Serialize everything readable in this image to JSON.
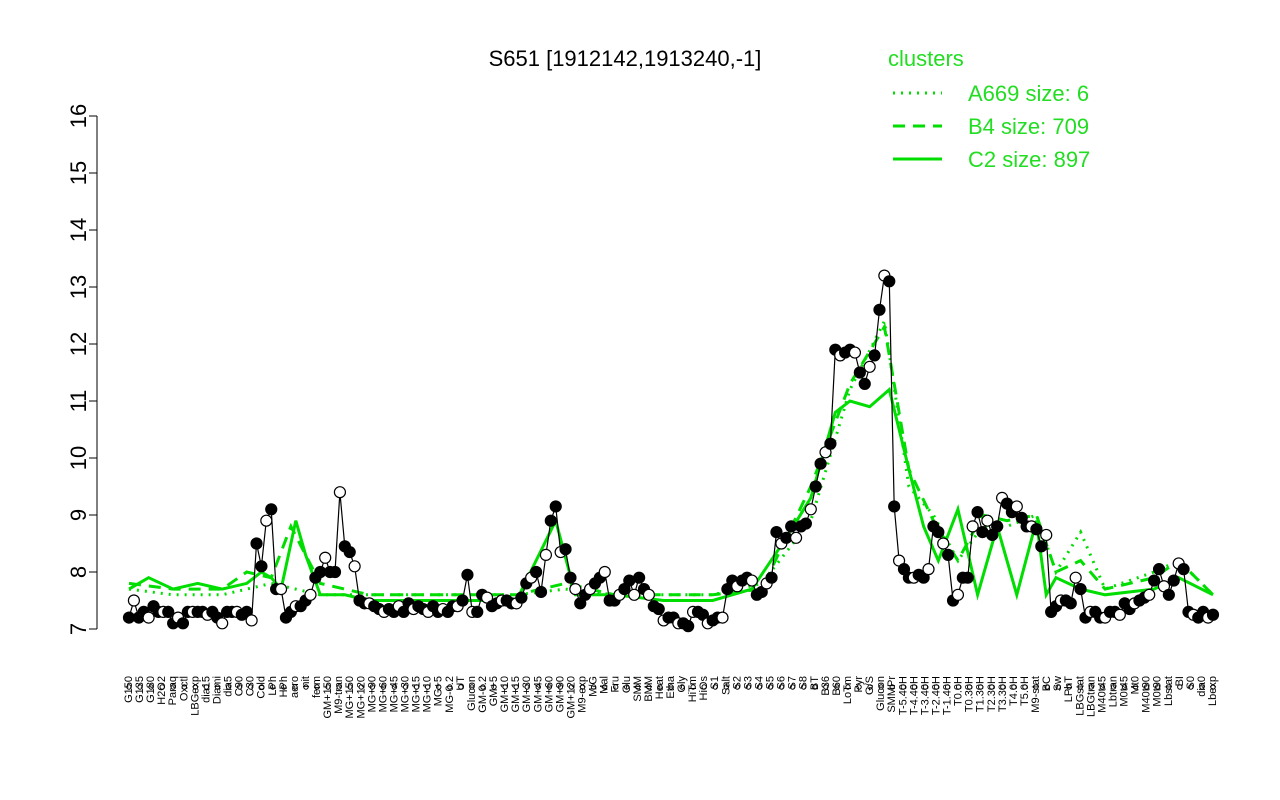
{
  "chart_data": {
    "type": "line",
    "title": "S651 [1912142,1913240,-1]",
    "xlabel": "",
    "ylabel": "",
    "ylim": [
      7,
      16
    ],
    "yticks": [
      "7",
      "8",
      "9",
      "10",
      "11",
      "12",
      "13",
      "14",
      "15",
      "16"
    ],
    "xticks": [
      "G150",
      "G135",
      "G180",
      "H2O2",
      "Paraq",
      "Oxctl",
      "LBGexp",
      "dia15",
      "Diami",
      "dia5",
      "C90",
      "C30",
      "Cold",
      "LPh",
      "HPh",
      "aero",
      "nit",
      "ferm",
      "GM+150",
      "M9-tran",
      "MG+150",
      "MG+120",
      "MG+90",
      "MG+60",
      "MG+45",
      "MG+30",
      "MG+15",
      "MG+10",
      "MG+5",
      "MG-0.2",
      "UT",
      "Glucon",
      "GM-0.2",
      "GM+5",
      "GM+10",
      "GM+15",
      "GM+30",
      "GM+45",
      "GM+60",
      "GM+90",
      "GM+120",
      "M9-exp",
      "M/G",
      "Mal",
      "Fru",
      "Glu",
      "SMM",
      "BMM",
      "Heat",
      "Etha",
      "Gly",
      "HiTm",
      "HiOs",
      "S1",
      "Salt",
      "S2",
      "S3",
      "S4",
      "S5",
      "S6",
      "S7",
      "S8",
      "BT",
      "B36",
      "B60",
      "LoTm",
      "Pyr",
      "G/S",
      "Glucon",
      "SMMPr",
      "T-5.40H",
      "T-4.40H",
      "T-3.40H",
      "T-2.40H",
      "T-1.40H",
      "T0.0H",
      "T0.30H",
      "T1.30H",
      "T2.30H",
      "T3.30H",
      "T4.0H",
      "T5.0H",
      "M9-stat",
      "BC",
      "Sw",
      "LPhT",
      "LBGstat",
      "LBGtran",
      "M40t45",
      "Lbtran",
      "M0t45",
      "Mt0",
      "M40t90",
      "M0t90",
      "Lbstat",
      "BI",
      "S0",
      "dia0",
      "Lbexp"
    ],
    "legend": {
      "title": "clusters",
      "placement": "top-right",
      "entries": [
        {
          "label": "A669 size: 6",
          "style": "dotted"
        },
        {
          "label": "B4 size: 709",
          "style": "dashed"
        },
        {
          "label": "C2 size: 897",
          "style": "solid"
        }
      ]
    },
    "colors": {
      "line": "#00dd00",
      "text_legend": "#22dd22",
      "points": "#000000"
    },
    "points": [
      [
        1,
        7.2
      ],
      [
        2,
        7.5
      ],
      [
        3,
        7.2
      ],
      [
        4,
        7.3
      ],
      [
        5,
        7.2
      ],
      [
        6,
        7.4
      ],
      [
        7,
        7.3
      ],
      [
        8,
        7.3
      ],
      [
        9,
        7.3
      ],
      [
        10,
        7.1
      ],
      [
        11,
        7.2
      ],
      [
        12,
        7.1
      ],
      [
        13,
        7.3
      ],
      [
        14,
        7.3
      ],
      [
        15,
        7.3
      ],
      [
        16,
        7.3
      ],
      [
        17,
        7.25
      ],
      [
        18,
        7.3
      ],
      [
        19,
        7.2
      ],
      [
        20,
        7.1
      ],
      [
        21,
        7.3
      ],
      [
        22,
        7.3
      ],
      [
        23,
        7.3
      ],
      [
        24,
        7.25
      ],
      [
        25,
        7.3
      ],
      [
        26,
        7.15
      ],
      [
        27,
        8.5
      ],
      [
        28,
        8.1
      ],
      [
        29,
        8.9
      ],
      [
        30,
        9.1
      ],
      [
        31,
        7.7
      ],
      [
        32,
        7.7
      ],
      [
        33,
        7.2
      ],
      [
        34,
        7.3
      ],
      [
        35,
        7.4
      ],
      [
        36,
        7.4
      ],
      [
        37,
        7.5
      ],
      [
        38,
        7.6
      ],
      [
        39,
        7.9
      ],
      [
        40,
        8.0
      ],
      [
        41,
        8.25
      ],
      [
        42,
        8.0
      ],
      [
        43,
        8.0
      ],
      [
        44,
        9.4
      ],
      [
        45,
        8.45
      ],
      [
        46,
        8.35
      ],
      [
        47,
        8.1
      ],
      [
        48,
        7.5
      ],
      [
        49,
        7.45
      ],
      [
        50,
        7.45
      ],
      [
        51,
        7.4
      ],
      [
        52,
        7.35
      ],
      [
        53,
        7.3
      ],
      [
        54,
        7.35
      ],
      [
        55,
        7.3
      ],
      [
        56,
        7.4
      ],
      [
        57,
        7.3
      ],
      [
        58,
        7.45
      ],
      [
        59,
        7.35
      ],
      [
        60,
        7.4
      ],
      [
        61,
        7.35
      ],
      [
        62,
        7.3
      ],
      [
        63,
        7.4
      ],
      [
        64,
        7.3
      ],
      [
        65,
        7.35
      ],
      [
        66,
        7.3
      ],
      [
        67,
        7.4
      ],
      [
        68,
        7.4
      ],
      [
        69,
        7.5
      ],
      [
        70,
        7.95
      ],
      [
        71,
        7.3
      ],
      [
        72,
        7.3
      ],
      [
        73,
        7.6
      ],
      [
        74,
        7.55
      ],
      [
        75,
        7.4
      ],
      [
        76,
        7.45
      ],
      [
        77,
        7.5
      ],
      [
        78,
        7.5
      ],
      [
        79,
        7.45
      ],
      [
        80,
        7.45
      ],
      [
        81,
        7.55
      ],
      [
        82,
        7.8
      ],
      [
        83,
        7.9
      ],
      [
        84,
        8.0
      ],
      [
        85,
        7.65
      ],
      [
        86,
        8.3
      ],
      [
        87,
        8.9
      ],
      [
        88,
        9.15
      ],
      [
        89,
        8.35
      ],
      [
        90,
        8.4
      ],
      [
        91,
        7.9
      ],
      [
        92,
        7.7
      ],
      [
        93,
        7.45
      ],
      [
        94,
        7.6
      ],
      [
        95,
        7.7
      ],
      [
        96,
        7.8
      ],
      [
        97,
        7.9
      ],
      [
        98,
        8.0
      ],
      [
        99,
        7.5
      ],
      [
        100,
        7.5
      ],
      [
        101,
        7.6
      ],
      [
        102,
        7.7
      ],
      [
        103,
        7.85
      ],
      [
        104,
        7.6
      ],
      [
        105,
        7.9
      ],
      [
        106,
        7.7
      ],
      [
        107,
        7.6
      ],
      [
        108,
        7.4
      ],
      [
        109,
        7.35
      ],
      [
        110,
        7.15
      ],
      [
        111,
        7.2
      ],
      [
        112,
        7.2
      ],
      [
        113,
        7.1
      ],
      [
        114,
        7.1
      ],
      [
        115,
        7.05
      ],
      [
        116,
        7.3
      ],
      [
        117,
        7.3
      ],
      [
        118,
        7.25
      ],
      [
        119,
        7.1
      ],
      [
        120,
        7.15
      ],
      [
        121,
        7.2
      ],
      [
        122,
        7.2
      ],
      [
        123,
        7.7
      ],
      [
        124,
        7.85
      ],
      [
        125,
        7.75
      ],
      [
        126,
        7.85
      ],
      [
        127,
        7.9
      ],
      [
        128,
        7.85
      ],
      [
        129,
        7.6
      ],
      [
        130,
        7.65
      ],
      [
        131,
        7.8
      ],
      [
        132,
        7.9
      ],
      [
        133,
        8.7
      ],
      [
        134,
        8.5
      ],
      [
        135,
        8.6
      ],
      [
        136,
        8.8
      ],
      [
        137,
        8.6
      ],
      [
        138,
        8.8
      ],
      [
        139,
        8.85
      ],
      [
        140,
        9.1
      ],
      [
        141,
        9.5
      ],
      [
        142,
        9.9
      ],
      [
        143,
        10.1
      ],
      [
        144,
        10.25
      ],
      [
        145,
        11.9
      ],
      [
        146,
        11.8
      ],
      [
        147,
        11.85
      ],
      [
        148,
        11.9
      ],
      [
        149,
        11.85
      ],
      [
        150,
        11.5
      ],
      [
        151,
        11.3
      ],
      [
        152,
        11.6
      ],
      [
        153,
        11.8
      ],
      [
        154,
        12.6
      ],
      [
        155,
        13.2
      ],
      [
        156,
        13.1
      ],
      [
        157,
        9.15
      ],
      [
        158,
        8.2
      ],
      [
        159,
        8.05
      ],
      [
        160,
        7.9
      ],
      [
        161,
        7.9
      ],
      [
        162,
        7.95
      ],
      [
        163,
        7.9
      ],
      [
        164,
        8.05
      ],
      [
        165,
        8.8
      ],
      [
        166,
        8.7
      ],
      [
        167,
        8.5
      ],
      [
        168,
        8.3
      ],
      [
        169,
        7.5
      ],
      [
        170,
        7.6
      ],
      [
        171,
        7.9
      ],
      [
        172,
        7.9
      ],
      [
        173,
        8.8
      ],
      [
        174,
        9.05
      ],
      [
        175,
        8.7
      ],
      [
        176,
        8.9
      ],
      [
        177,
        8.65
      ],
      [
        178,
        8.8
      ],
      [
        179,
        9.3
      ],
      [
        180,
        9.2
      ],
      [
        181,
        9.05
      ],
      [
        182,
        9.15
      ],
      [
        183,
        8.95
      ],
      [
        184,
        8.8
      ],
      [
        185,
        8.8
      ],
      [
        186,
        8.75
      ],
      [
        187,
        8.45
      ],
      [
        188,
        8.65
      ],
      [
        189,
        7.3
      ],
      [
        190,
        7.4
      ],
      [
        191,
        7.5
      ],
      [
        192,
        7.5
      ],
      [
        193,
        7.45
      ],
      [
        194,
        7.9
      ],
      [
        195,
        7.7
      ],
      [
        196,
        7.2
      ],
      [
        197,
        7.3
      ],
      [
        198,
        7.3
      ],
      [
        199,
        7.2
      ],
      [
        200,
        7.2
      ],
      [
        201,
        7.3
      ],
      [
        202,
        7.3
      ],
      [
        203,
        7.25
      ],
      [
        204,
        7.45
      ],
      [
        205,
        7.35
      ],
      [
        206,
        7.45
      ],
      [
        207,
        7.5
      ],
      [
        208,
        7.55
      ],
      [
        209,
        7.6
      ],
      [
        210,
        7.85
      ],
      [
        211,
        8.05
      ],
      [
        212,
        7.75
      ],
      [
        213,
        7.6
      ],
      [
        214,
        7.85
      ],
      [
        215,
        8.15
      ],
      [
        216,
        8.05
      ],
      [
        217,
        7.3
      ],
      [
        218,
        7.25
      ],
      [
        219,
        7.2
      ],
      [
        220,
        7.3
      ],
      [
        221,
        7.2
      ],
      [
        222,
        7.25
      ]
    ],
    "series": [
      {
        "name": "A669 size: 6",
        "style": "dotted",
        "values": [
          [
            1,
            7.7
          ],
          [
            10,
            7.6
          ],
          [
            20,
            7.6
          ],
          [
            30,
            7.8
          ],
          [
            40,
            7.6
          ],
          [
            50,
            7.6
          ],
          [
            60,
            7.6
          ],
          [
            70,
            7.6
          ],
          [
            80,
            7.6
          ],
          [
            90,
            7.7
          ],
          [
            100,
            7.6
          ],
          [
            110,
            7.6
          ],
          [
            120,
            7.6
          ],
          [
            130,
            7.8
          ],
          [
            140,
            8.9
          ],
          [
            148,
            11.2
          ],
          [
            155,
            12.4
          ],
          [
            160,
            9.5
          ],
          [
            165,
            9.0
          ],
          [
            170,
            8.2
          ],
          [
            175,
            8.8
          ],
          [
            180,
            8.8
          ],
          [
            186,
            9.0
          ],
          [
            190,
            8.0
          ],
          [
            195,
            8.7
          ],
          [
            200,
            7.7
          ],
          [
            210,
            8.0
          ],
          [
            215,
            8.2
          ],
          [
            222,
            7.6
          ]
        ]
      },
      {
        "name": "B4 size: 709",
        "style": "dashed",
        "values": [
          [
            1,
            7.8
          ],
          [
            10,
            7.7
          ],
          [
            20,
            7.7
          ],
          [
            25,
            8.0
          ],
          [
            30,
            7.9
          ],
          [
            34,
            8.8
          ],
          [
            40,
            7.8
          ],
          [
            50,
            7.6
          ],
          [
            60,
            7.6
          ],
          [
            70,
            7.6
          ],
          [
            80,
            7.6
          ],
          [
            90,
            7.8
          ],
          [
            100,
            7.6
          ],
          [
            110,
            7.6
          ],
          [
            120,
            7.6
          ],
          [
            130,
            7.7
          ],
          [
            140,
            9.5
          ],
          [
            148,
            11.3
          ],
          [
            155,
            12.3
          ],
          [
            160,
            9.8
          ],
          [
            165,
            8.9
          ],
          [
            170,
            8.2
          ],
          [
            175,
            9.0
          ],
          [
            180,
            8.9
          ],
          [
            186,
            9.0
          ],
          [
            190,
            8.0
          ],
          [
            195,
            8.2
          ],
          [
            200,
            7.7
          ],
          [
            210,
            7.9
          ],
          [
            215,
            8.2
          ],
          [
            222,
            7.6
          ]
        ]
      },
      {
        "name": "C2 size: 897",
        "style": "solid",
        "values": [
          [
            1,
            7.7
          ],
          [
            5,
            7.9
          ],
          [
            10,
            7.7
          ],
          [
            15,
            7.8
          ],
          [
            20,
            7.7
          ],
          [
            25,
            7.8
          ],
          [
            28,
            8.0
          ],
          [
            30,
            7.9
          ],
          [
            32,
            7.7
          ],
          [
            35,
            8.9
          ],
          [
            37,
            8.3
          ],
          [
            40,
            7.6
          ],
          [
            45,
            7.6
          ],
          [
            50,
            7.5
          ],
          [
            60,
            7.5
          ],
          [
            70,
            7.5
          ],
          [
            80,
            7.5
          ],
          [
            88,
            8.9
          ],
          [
            92,
            7.6
          ],
          [
            100,
            7.6
          ],
          [
            110,
            7.5
          ],
          [
            120,
            7.5
          ],
          [
            128,
            7.7
          ],
          [
            135,
            8.6
          ],
          [
            140,
            9.3
          ],
          [
            145,
            10.8
          ],
          [
            148,
            11.0
          ],
          [
            152,
            10.9
          ],
          [
            156,
            11.2
          ],
          [
            160,
            9.8
          ],
          [
            163,
            8.8
          ],
          [
            166,
            8.2
          ],
          [
            170,
            9.1
          ],
          [
            174,
            7.6
          ],
          [
            178,
            8.8
          ],
          [
            182,
            7.6
          ],
          [
            186,
            8.9
          ],
          [
            188,
            7.6
          ],
          [
            190,
            7.9
          ],
          [
            195,
            7.7
          ],
          [
            200,
            7.6
          ],
          [
            210,
            7.7
          ],
          [
            215,
            7.9
          ],
          [
            222,
            7.6
          ]
        ]
      }
    ]
  }
}
